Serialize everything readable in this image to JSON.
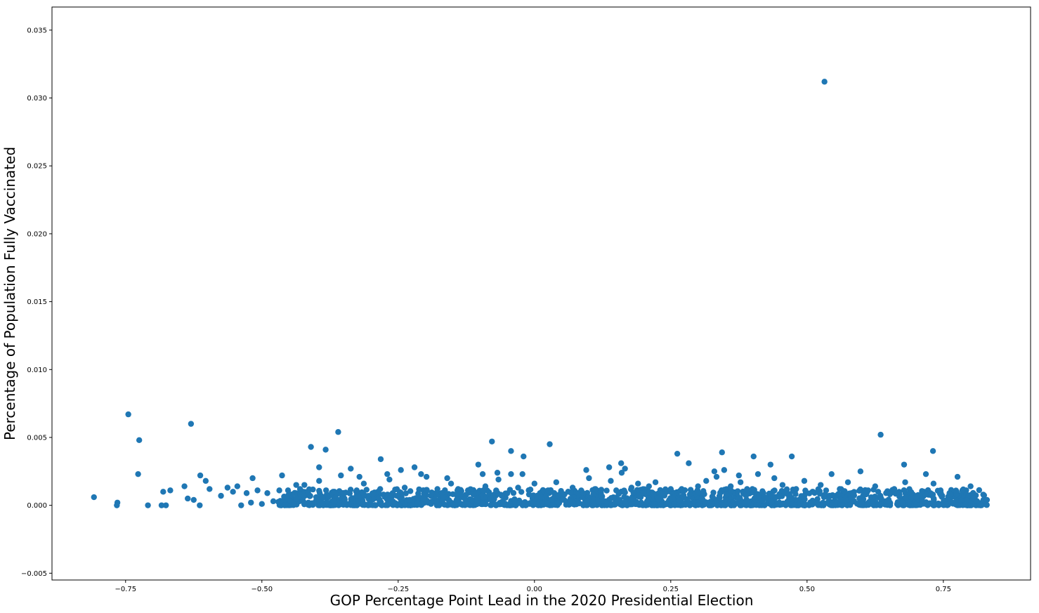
{
  "chart_data": {
    "type": "scatter",
    "title": "",
    "xlabel": "GOP Percentage Point Lead in the 2020 Presidential Election",
    "ylabel": "Percentage of Population Fully Vaccinated",
    "xlim": [
      -0.885,
      0.91
    ],
    "ylim": [
      -0.0055,
      0.0367
    ],
    "x_ticks": [
      -0.75,
      -0.5,
      -0.25,
      0.0,
      0.25,
      0.5,
      0.75
    ],
    "x_tick_labels": [
      "−0.75",
      "−0.50",
      "−0.25",
      "0.00",
      "0.25",
      "0.50",
      "0.75"
    ],
    "y_ticks": [
      -0.005,
      0.0,
      0.005,
      0.01,
      0.015,
      0.02,
      0.025,
      0.03,
      0.035
    ],
    "y_tick_labels": [
      "−0.005",
      "0.000",
      "0.005",
      "0.010",
      "0.015",
      "0.020",
      "0.025",
      "0.030",
      "0.035"
    ],
    "grid": false,
    "color": "#1f77b4",
    "series": [
      {
        "points": [
          [
            0.532,
            0.0312
          ],
          [
            -0.745,
            0.0067
          ],
          [
            -0.63,
            0.006
          ],
          [
            -0.725,
            0.0048
          ],
          [
            -0.36,
            0.0054
          ],
          [
            0.635,
            0.0052
          ],
          [
            -0.41,
            0.0043
          ],
          [
            -0.383,
            0.0041
          ],
          [
            -0.078,
            0.0047
          ],
          [
            0.028,
            0.0045
          ],
          [
            0.344,
            0.0039
          ],
          [
            0.731,
            0.004
          ],
          [
            -0.043,
            0.004
          ],
          [
            -0.02,
            0.0036
          ],
          [
            0.262,
            0.0038
          ],
          [
            0.402,
            0.0036
          ],
          [
            0.472,
            0.0036
          ],
          [
            -0.282,
            0.0034
          ],
          [
            -0.103,
            0.003
          ],
          [
            0.433,
            0.003
          ],
          [
            0.678,
            0.003
          ],
          [
            0.283,
            0.0031
          ],
          [
            0.159,
            0.0031
          ],
          [
            -0.727,
            0.0023
          ],
          [
            -0.808,
            0.0006
          ],
          [
            -0.765,
            0.0002
          ],
          [
            -0.766,
            0.0
          ],
          [
            -0.709,
            0.0
          ],
          [
            -0.684,
            0.0
          ],
          [
            -0.676,
            0.0
          ],
          [
            -0.681,
            0.001
          ],
          [
            -0.668,
            0.0011
          ],
          [
            -0.642,
            0.0014
          ],
          [
            -0.636,
            0.0005
          ],
          [
            -0.625,
            0.0004
          ],
          [
            -0.614,
            0.0
          ],
          [
            -0.613,
            0.0022
          ],
          [
            -0.603,
            0.0018
          ],
          [
            -0.596,
            0.0012
          ],
          [
            -0.575,
            0.0007
          ],
          [
            -0.563,
            0.0013
          ],
          [
            -0.553,
            0.001
          ],
          [
            -0.545,
            0.0014
          ],
          [
            -0.538,
            0.0
          ],
          [
            -0.528,
            0.0009
          ],
          [
            -0.52,
            0.0002
          ],
          [
            -0.517,
            0.002
          ],
          [
            -0.508,
            0.0011
          ],
          [
            -0.5,
            0.0001
          ],
          [
            -0.49,
            0.0009
          ],
          [
            -0.479,
            0.0003
          ],
          [
            -0.468,
            0.0011
          ],
          [
            -0.463,
            0.0022
          ],
          [
            -0.458,
            0.0
          ],
          [
            -0.452,
            0.0011
          ],
          [
            -0.445,
            0.0008
          ],
          [
            -0.437,
            0.0015
          ],
          [
            -0.43,
            0.0012
          ],
          [
            -0.422,
            0.0015
          ],
          [
            -0.415,
            0.0009
          ],
          [
            -0.395,
            0.0028
          ],
          [
            -0.395,
            0.0018
          ],
          [
            -0.389,
            0.0006
          ],
          [
            -0.373,
            0.0
          ],
          [
            -0.367,
            0.001
          ],
          [
            -0.355,
            0.0022
          ],
          [
            -0.348,
            0.0004
          ],
          [
            -0.337,
            0.0027
          ],
          [
            -0.326,
            0.0011
          ],
          [
            -0.321,
            0.0021
          ],
          [
            -0.313,
            0.0016
          ],
          [
            -0.305,
            0.0
          ],
          [
            -0.295,
            0.0009
          ],
          [
            -0.283,
            0.0012
          ],
          [
            -0.27,
            0.0023
          ],
          [
            -0.266,
            0.0019
          ],
          [
            -0.245,
            0.0026
          ],
          [
            -0.238,
            0.0013
          ],
          [
            -0.22,
            0.0028
          ],
          [
            -0.208,
            0.0023
          ],
          [
            -0.198,
            0.0021
          ],
          [
            -0.19,
            0.0007
          ],
          [
            -0.178,
            0.0012
          ],
          [
            -0.17,
            0.0009
          ],
          [
            -0.16,
            0.002
          ],
          [
            -0.153,
            0.0016
          ],
          [
            -0.146,
            0.0
          ],
          [
            -0.14,
            0.0012
          ],
          [
            -0.128,
            0.0005
          ],
          [
            -0.122,
            0.0011
          ],
          [
            -0.112,
            0.0008
          ],
          [
            -0.095,
            0.0023
          ],
          [
            -0.09,
            0.0014
          ],
          [
            -0.08,
            0.0005
          ],
          [
            -0.068,
            0.0024
          ],
          [
            -0.066,
            0.0019
          ],
          [
            -0.06,
            0.0007
          ],
          [
            -0.043,
            0.0023
          ],
          [
            -0.03,
            0.0013
          ],
          [
            -0.022,
            0.0023
          ],
          [
            -0.01,
            0.0008
          ],
          [
            0.0,
            0.0016
          ],
          [
            0.012,
            0.0006
          ],
          [
            0.025,
            0.0011
          ],
          [
            0.04,
            0.0017
          ],
          [
            0.055,
            0.0008
          ],
          [
            0.07,
            0.0013
          ],
          [
            0.08,
            0.0009
          ],
          [
            0.095,
            0.0026
          ],
          [
            0.1,
            0.002
          ],
          [
            0.112,
            0.0012
          ],
          [
            0.122,
            0.0007
          ],
          [
            0.137,
            0.0028
          ],
          [
            0.14,
            0.0018
          ],
          [
            0.15,
            0.0011
          ],
          [
            0.16,
            0.0024
          ],
          [
            0.166,
            0.0027
          ],
          [
            0.178,
            0.0013
          ],
          [
            0.19,
            0.0016
          ],
          [
            0.2,
            0.0009
          ],
          [
            0.21,
            0.0014
          ],
          [
            0.222,
            0.0017
          ],
          [
            0.235,
            0.0008
          ],
          [
            0.25,
            0.0012
          ],
          [
            0.27,
            0.0012
          ],
          [
            0.285,
            0.0008
          ],
          [
            0.3,
            0.0014
          ],
          [
            0.315,
            0.0018
          ],
          [
            0.33,
            0.0025
          ],
          [
            0.334,
            0.0021
          ],
          [
            0.348,
            0.0026
          ],
          [
            0.36,
            0.0014
          ],
          [
            0.375,
            0.0022
          ],
          [
            0.378,
            0.0017
          ],
          [
            0.39,
            0.0012
          ],
          [
            0.41,
            0.0023
          ],
          [
            0.42,
            0.0009
          ],
          [
            0.44,
            0.002
          ],
          [
            0.455,
            0.0015
          ],
          [
            0.48,
            0.0012
          ],
          [
            0.495,
            0.0018
          ],
          [
            0.51,
            0.001
          ],
          [
            0.525,
            0.0015
          ],
          [
            0.545,
            0.0023
          ],
          [
            0.56,
            0.0012
          ],
          [
            0.575,
            0.0017
          ],
          [
            0.585,
            0.0008
          ],
          [
            0.598,
            0.0025
          ],
          [
            0.612,
            0.0011
          ],
          [
            0.625,
            0.0014
          ],
          [
            0.645,
            0.0009
          ],
          [
            0.66,
            0.0012
          ],
          [
            0.68,
            0.0017
          ],
          [
            0.7,
            0.0006
          ],
          [
            0.718,
            0.0023
          ],
          [
            0.732,
            0.0016
          ],
          [
            0.745,
            0.0011
          ],
          [
            0.762,
            0.0008
          ],
          [
            0.776,
            0.0021
          ],
          [
            0.785,
            0.0011
          ],
          [
            0.8,
            0.0014
          ],
          [
            0.805,
            0.0005
          ],
          [
            0.812,
            0.0003
          ],
          [
            0.818,
            0.0
          ],
          [
            0.83,
            0.0004
          ]
        ],
        "dense_band": {
          "x_range": [
            -0.47,
            0.83
          ],
          "y_range": [
            0.0,
            0.0012
          ]
        }
      }
    ]
  }
}
